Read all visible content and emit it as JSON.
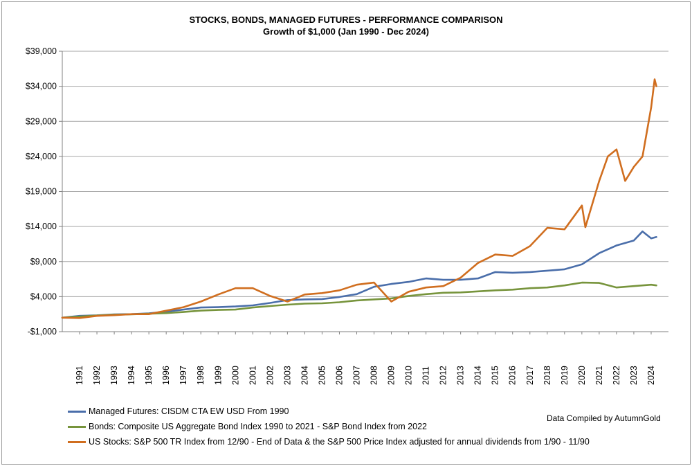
{
  "chart_data": {
    "type": "line",
    "title": "STOCKS, BONDS, MANAGED FUTURES - PERFORMANCE COMPARISON",
    "subtitle": "Growth of $1,000 (Jan 1990 - Dec 2024)",
    "xlabel": "",
    "ylabel": "",
    "ylim": [
      -1000,
      39000
    ],
    "y_ticks": [
      -1000,
      4000,
      9000,
      14000,
      19000,
      24000,
      29000,
      34000,
      39000
    ],
    "y_tick_labels": [
      "-$1,000",
      "$4,000",
      "$9,000",
      "$14,000",
      "$19,000",
      "$24,000",
      "$29,000",
      "$34,000",
      "$39,000"
    ],
    "x_range": [
      1990,
      2025
    ],
    "x_tick_labels": [
      "1991",
      "1992",
      "1993",
      "1994",
      "1995",
      "1996",
      "1997",
      "1998",
      "1999",
      "2000",
      "2001",
      "2002",
      "2003",
      "2004",
      "2005",
      "2006",
      "2007",
      "2008",
      "2009",
      "2010",
      "2011",
      "2012",
      "2013",
      "2014",
      "2015",
      "2016",
      "2017",
      "2018",
      "2019",
      "2020",
      "2021",
      "2022",
      "2023",
      "2024"
    ],
    "grid": true,
    "legend_position": "bottom",
    "series": [
      {
        "name": "Managed Futures: CISDM CTA EW USD From 1990",
        "color": "#4a6eaa",
        "points": [
          [
            1990,
            1000
          ],
          [
            1991,
            1250
          ],
          [
            1992,
            1330
          ],
          [
            1993,
            1470
          ],
          [
            1994,
            1500
          ],
          [
            1995,
            1620
          ],
          [
            1996,
            1850
          ],
          [
            1997,
            2150
          ],
          [
            1998,
            2450
          ],
          [
            1999,
            2500
          ],
          [
            2000,
            2600
          ],
          [
            2001,
            2750
          ],
          [
            2002,
            3100
          ],
          [
            2003,
            3500
          ],
          [
            2004,
            3600
          ],
          [
            2005,
            3650
          ],
          [
            2006,
            3950
          ],
          [
            2007,
            4350
          ],
          [
            2008,
            5400
          ],
          [
            2009,
            5800
          ],
          [
            2010,
            6100
          ],
          [
            2011,
            6600
          ],
          [
            2012,
            6400
          ],
          [
            2013,
            6400
          ],
          [
            2014,
            6600
          ],
          [
            2015,
            7500
          ],
          [
            2016,
            7400
          ],
          [
            2017,
            7500
          ],
          [
            2018,
            7700
          ],
          [
            2019,
            7900
          ],
          [
            2020,
            8600
          ],
          [
            2021,
            10200
          ],
          [
            2022,
            11300
          ],
          [
            2023,
            12000
          ],
          [
            2023.5,
            13300
          ],
          [
            2024,
            12300
          ],
          [
            2024.3,
            12500
          ]
        ]
      },
      {
        "name": "Bonds: Composite US Aggregate Bond Index 1990 to 2021 - S&P Bond Index from 2022",
        "color": "#77943c",
        "points": [
          [
            1990,
            1000
          ],
          [
            1991,
            1150
          ],
          [
            1992,
            1300
          ],
          [
            1993,
            1430
          ],
          [
            1994,
            1480
          ],
          [
            1995,
            1560
          ],
          [
            1996,
            1650
          ],
          [
            1997,
            1800
          ],
          [
            1998,
            2000
          ],
          [
            1999,
            2100
          ],
          [
            2000,
            2150
          ],
          [
            2001,
            2450
          ],
          [
            2002,
            2650
          ],
          [
            2003,
            2850
          ],
          [
            2004,
            3000
          ],
          [
            2005,
            3050
          ],
          [
            2006,
            3200
          ],
          [
            2007,
            3450
          ],
          [
            2008,
            3600
          ],
          [
            2009,
            3750
          ],
          [
            2010,
            4100
          ],
          [
            2011,
            4350
          ],
          [
            2012,
            4550
          ],
          [
            2013,
            4600
          ],
          [
            2014,
            4750
          ],
          [
            2015,
            4900
          ],
          [
            2016,
            5000
          ],
          [
            2017,
            5200
          ],
          [
            2018,
            5300
          ],
          [
            2019,
            5600
          ],
          [
            2020,
            6000
          ],
          [
            2021,
            5950
          ],
          [
            2022,
            5300
          ],
          [
            2023,
            5500
          ],
          [
            2024,
            5700
          ],
          [
            2024.3,
            5600
          ]
        ]
      },
      {
        "name": "US Stocks: S&P 500 TR Index from 12/90 - End of Data & the S&P 500 Price Index adjusted for annual dividends from 1/90 - 11/90",
        "color": "#d06e1f",
        "points": [
          [
            1990,
            1000
          ],
          [
            1991,
            950
          ],
          [
            1992,
            1250
          ],
          [
            1993,
            1350
          ],
          [
            1994,
            1500
          ],
          [
            1995,
            1500
          ],
          [
            1996,
            2000
          ],
          [
            1997,
            2500
          ],
          [
            1998,
            3300
          ],
          [
            1999,
            4300
          ],
          [
            2000,
            5200
          ],
          [
            2001,
            5200
          ],
          [
            2002,
            4100
          ],
          [
            2003,
            3300
          ],
          [
            2004,
            4300
          ],
          [
            2005,
            4500
          ],
          [
            2006,
            4900
          ],
          [
            2007,
            5700
          ],
          [
            2008,
            6000
          ],
          [
            2009,
            3300
          ],
          [
            2010,
            4700
          ],
          [
            2011,
            5300
          ],
          [
            2012,
            5500
          ],
          [
            2013,
            6700
          ],
          [
            2014,
            8800
          ],
          [
            2015,
            10000
          ],
          [
            2016,
            9800
          ],
          [
            2017,
            11200
          ],
          [
            2018,
            13800
          ],
          [
            2019,
            13600
          ],
          [
            2020,
            17000
          ],
          [
            2020.2,
            13900
          ],
          [
            2021,
            20500
          ],
          [
            2021.5,
            24000
          ],
          [
            2022,
            25000
          ],
          [
            2022.5,
            20500
          ],
          [
            2023,
            22500
          ],
          [
            2023.5,
            24000
          ],
          [
            2024,
            31000
          ],
          [
            2024.2,
            35000
          ],
          [
            2024.3,
            34000
          ]
        ]
      }
    ]
  },
  "credit": "Data Compiled by AutumnGold"
}
